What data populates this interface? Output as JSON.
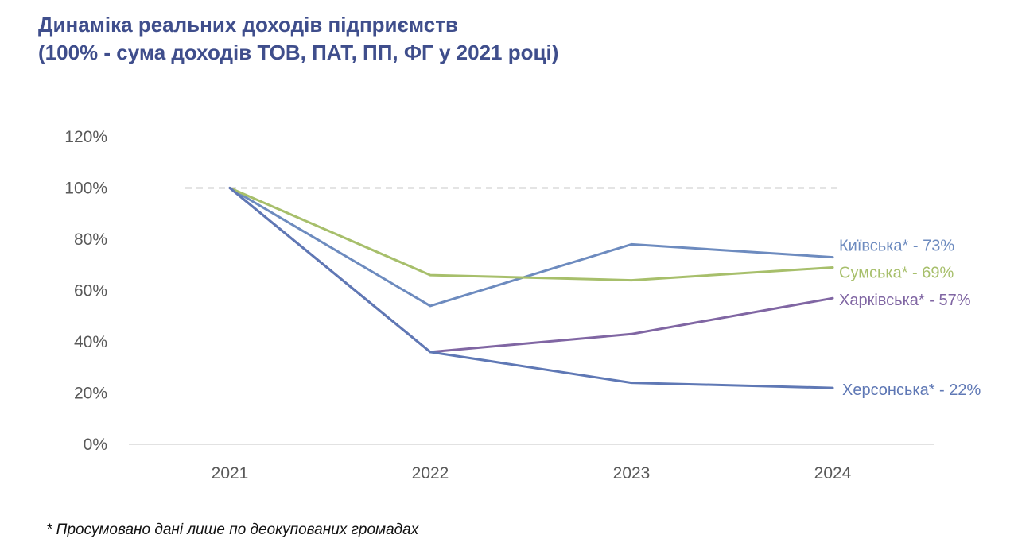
{
  "title": {
    "line1": "Динаміка реальних доходів підприємств",
    "line2": "(100% - сума доходів ТОВ, ПАТ, ПП, ФГ у 2021 році)"
  },
  "footnote": "* Просумовано дані лише по деокупованих громадах",
  "chart_data": {
    "type": "line",
    "title": "Динаміка реальних доходів підприємств",
    "x": [
      "2021",
      "2022",
      "2023",
      "2024"
    ],
    "y_ticks": [
      0,
      20,
      40,
      60,
      80,
      100,
      120
    ],
    "y_tick_labels": [
      "0%",
      "20%",
      "40%",
      "60%",
      "80%",
      "100%",
      "120%"
    ],
    "ylim": [
      0,
      120
    ],
    "reference_line": 100,
    "grid": false,
    "series": [
      {
        "name": "Київська",
        "label": "Київська* - 73%",
        "values": [
          100,
          54,
          78,
          73
        ],
        "color": "#6d8bbf"
      },
      {
        "name": "Сумська",
        "label": "Сумська* - 69%",
        "values": [
          100,
          66,
          64,
          69
        ],
        "color": "#a7bf6b"
      },
      {
        "name": "Харківська",
        "label": "Харківська* - 57%",
        "values": [
          100,
          36,
          43,
          57
        ],
        "color": "#8066a3"
      },
      {
        "name": "Херсонська",
        "label": "Херсонська* - 22%",
        "values": [
          100,
          36,
          24,
          22
        ],
        "color": "#5f78b5"
      }
    ]
  }
}
